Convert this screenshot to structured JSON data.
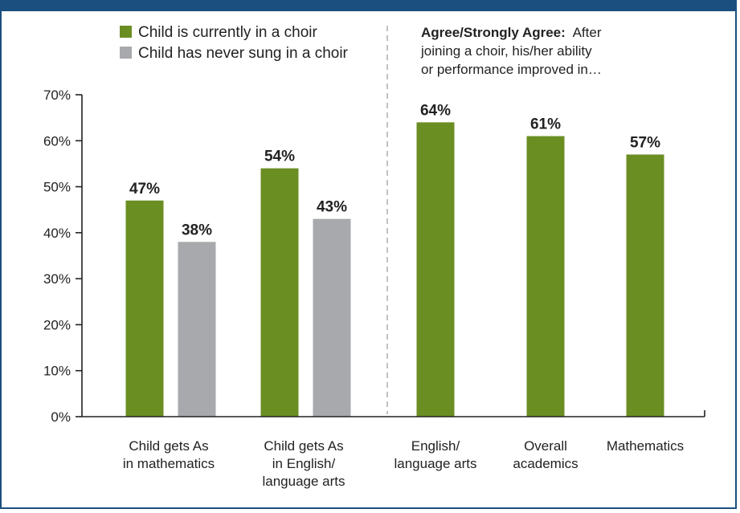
{
  "chart_data": {
    "type": "bar",
    "ylim": [
      0,
      70
    ],
    "yticks": [
      "0%",
      "10%",
      "20%",
      "30%",
      "40%",
      "50%",
      "60%",
      "70%"
    ],
    "colors": {
      "choir": "#6b8e23",
      "never": "#a7a9ac",
      "axis": "#222222",
      "border": "#1b4f7f",
      "divider": "#9a9a9a"
    },
    "legend": [
      {
        "label": "Child is currently in a choir",
        "color": "#6b8e23"
      },
      {
        "label": "Child has never sung in a choir",
        "color": "#a7a9ac"
      }
    ],
    "left_panel": {
      "categories": [
        [
          "Child gets As",
          "in mathematics"
        ],
        [
          "Child gets As",
          "in English/",
          "language arts"
        ]
      ],
      "series": [
        {
          "name": "Child is currently in a choir",
          "values": [
            47,
            54
          ],
          "labels": [
            "47%",
            "54%"
          ]
        },
        {
          "name": "Child has never sung in a choir",
          "values": [
            38,
            43
          ],
          "labels": [
            "38%",
            "43%"
          ]
        }
      ]
    },
    "right_panel": {
      "note_strong": "Agree/Strongly Agree:",
      "note_lines": [
        "After",
        "joining a choir, his/her ability",
        "or performance improved in…"
      ],
      "categories": [
        [
          "English/",
          "language arts"
        ],
        [
          "Overall",
          "academics"
        ],
        [
          "Mathematics"
        ]
      ],
      "values": [
        64,
        61,
        57
      ],
      "labels": [
        "64%",
        "61%",
        "57%"
      ]
    }
  }
}
